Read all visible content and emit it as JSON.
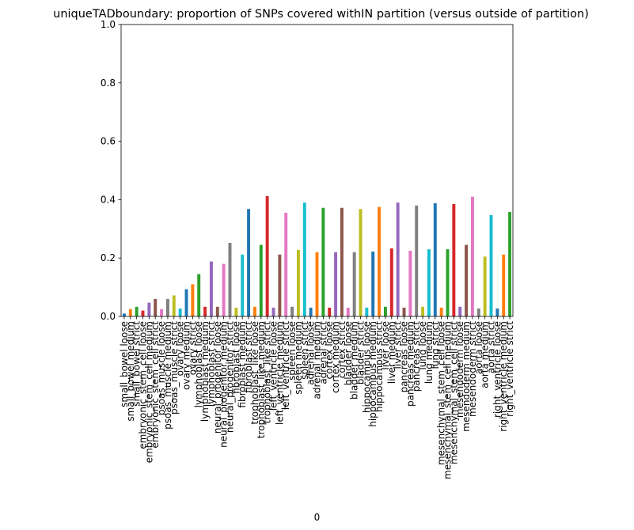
{
  "chart_data": {
    "type": "bar",
    "title": "uniqueTADboundary: proportion of SNPs covered withIN partition (versus outside of partition)",
    "xlabel": "0",
    "ylabel": "",
    "ylim": [
      0,
      1
    ],
    "yticks": [
      0.0,
      0.2,
      0.4,
      0.6,
      0.8,
      1.0
    ],
    "ytick_labels": [
      "0.0",
      "0.2",
      "0.4",
      "0.6",
      "0.8",
      "1.0"
    ],
    "grid": false,
    "legend": false,
    "palette": [
      "#1f77b4",
      "#ff7f0e",
      "#2ca02c",
      "#d62728",
      "#9467bd",
      "#8c564b",
      "#e377c2",
      "#7f7f7f",
      "#bcbd22",
      "#17becf"
    ],
    "categories": [
      "small_bowel loose",
      "small_bowel medium",
      "small_bowel strict",
      "embryonic_stem_cell loose",
      "embryonic_stem_cell medium",
      "embryonic_stem_cell strict",
      "psoas_muscle loose",
      "psoas_muscle medium",
      "psoas_muscle strict",
      "ovary loose",
      "ovary medium",
      "ovary strict",
      "lymphoblast loose",
      "lymphoblast medium",
      "lymphoblast strict",
      "neural_progenitor loose",
      "neural_progenitor medium",
      "neural_progenitor strict",
      "fibroblast loose",
      "fibroblast medium",
      "fibroblast strict",
      "trophoblast_like loose",
      "trophoblast_like medium",
      "trophoblast_like strict",
      "left_ventricle loose",
      "left_ventricle medium",
      "left_ventricle strict",
      "spleen loose",
      "spleen medium",
      "spleen strict",
      "adrenal loose",
      "adrenal medium",
      "adrenal strict",
      "cortex loose",
      "cortex medium",
      "cortex strict",
      "bladder loose",
      "bladder medium",
      "bladder strict",
      "hippocampus loose",
      "hippocampus medium",
      "hippocampus strict",
      "liver loose",
      "liver medium",
      "liver strict",
      "pancreas loose",
      "pancreas medium",
      "pancreas strict",
      "lung loose",
      "lung medium",
      "lung strict",
      "mesenchymal_stem_cell loose",
      "mesenchymal_stem_cell medium",
      "mesenchymal_stem_cell strict",
      "mesendoderm loose",
      "mesendoderm medium",
      "mesendoderm strict",
      "aorta loose",
      "aorta medium",
      "aorta strict",
      "right_ventricle loose",
      "right_ventricle medium",
      "right_ventricle strict"
    ],
    "values": [
      0.01,
      0.025,
      0.033,
      0.02,
      0.047,
      0.06,
      0.025,
      0.06,
      0.072,
      0.027,
      0.093,
      0.11,
      0.145,
      0.033,
      0.188,
      0.033,
      0.18,
      0.252,
      0.03,
      0.212,
      0.368,
      0.033,
      0.245,
      0.412,
      0.03,
      0.212,
      0.355,
      0.033,
      0.228,
      0.39,
      0.03,
      0.22,
      0.372,
      0.03,
      0.22,
      0.372,
      0.03,
      0.22,
      0.368,
      0.03,
      0.222,
      0.375,
      0.033,
      0.233,
      0.39,
      0.03,
      0.225,
      0.38,
      0.033,
      0.23,
      0.388,
      0.03,
      0.23,
      0.385,
      0.033,
      0.245,
      0.41,
      0.027,
      0.205,
      0.347,
      0.027,
      0.212,
      0.358
    ]
  }
}
